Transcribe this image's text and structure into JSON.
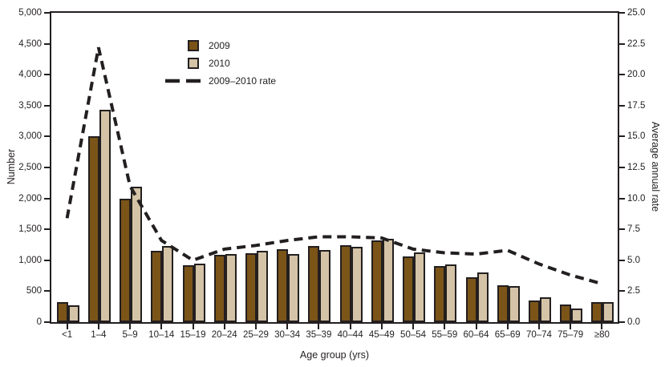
{
  "figure": {
    "y_left": {
      "title": "Number",
      "tick_labels": [
        "0",
        "500",
        "1,000",
        "1,500",
        "2,000",
        "2,500",
        "3,000",
        "3,500",
        "4,000",
        "4,500",
        "5,000"
      ],
      "min": 0,
      "max": 5000,
      "step": 500
    },
    "y_right": {
      "title": "Average annual rate",
      "tick_labels": [
        "0.0",
        "2.5",
        "5.0",
        "7.5",
        "10.0",
        "12.5",
        "15.0",
        "17.5",
        "20.0",
        "22.5",
        "25.0"
      ],
      "min": 0,
      "max": 25,
      "step": 2.5
    },
    "x_axis": {
      "title": "Age group (yrs)"
    }
  },
  "legend": [
    {
      "label": "2009",
      "type": "swatch",
      "color": "#7b5418"
    },
    {
      "label": "2010",
      "type": "swatch",
      "color": "#d4c3a6"
    },
    {
      "label": "2009–2010 rate",
      "type": "dash",
      "color": "#231f20"
    }
  ],
  "colors": {
    "ink": "#231f20",
    "bar_2009": "#7b5418",
    "bar_2010": "#d4c3a6",
    "rate_line": "#231f20"
  },
  "chart_data": {
    "type": "bar",
    "title": "",
    "xlabel": "Age group (yrs)",
    "ylabel_left": "Number",
    "ylabel_right": "Average annual rate",
    "ylim_left": [
      0,
      5000
    ],
    "ylim_right": [
      0,
      25
    ],
    "grid": false,
    "legend_position": "upper-left-inside",
    "categories": [
      "<1",
      "1–4",
      "5–9",
      "10–14",
      "15–19",
      "20–24",
      "25–29",
      "30–34",
      "35–39",
      "40–44",
      "45–49",
      "50–54",
      "55–59",
      "60–64",
      "65–69",
      "70–74",
      "75–79",
      "≥80"
    ],
    "series": [
      {
        "name": "2009",
        "type": "bar",
        "axis": "left",
        "color": "#7b5418",
        "values": [
          330,
          3000,
          2000,
          1150,
          920,
          1090,
          1120,
          1180,
          1230,
          1240,
          1320,
          1060,
          910,
          720,
          600,
          350,
          280,
          320
        ]
      },
      {
        "name": "2010",
        "type": "bar",
        "axis": "left",
        "color": "#d4c3a6",
        "values": [
          270,
          3430,
          2190,
          1230,
          940,
          1100,
          1150,
          1100,
          1170,
          1220,
          1350,
          1130,
          930,
          800,
          580,
          400,
          220,
          320
        ]
      },
      {
        "name": "2009–2010 rate",
        "type": "line",
        "dashed": true,
        "axis": "right",
        "color": "#231f20",
        "values": [
          8.4,
          22.2,
          11.0,
          6.6,
          5.0,
          5.9,
          6.2,
          6.6,
          6.9,
          6.9,
          6.8,
          5.9,
          5.6,
          5.5,
          5.8,
          4.7,
          3.8,
          3.1
        ]
      }
    ]
  }
}
